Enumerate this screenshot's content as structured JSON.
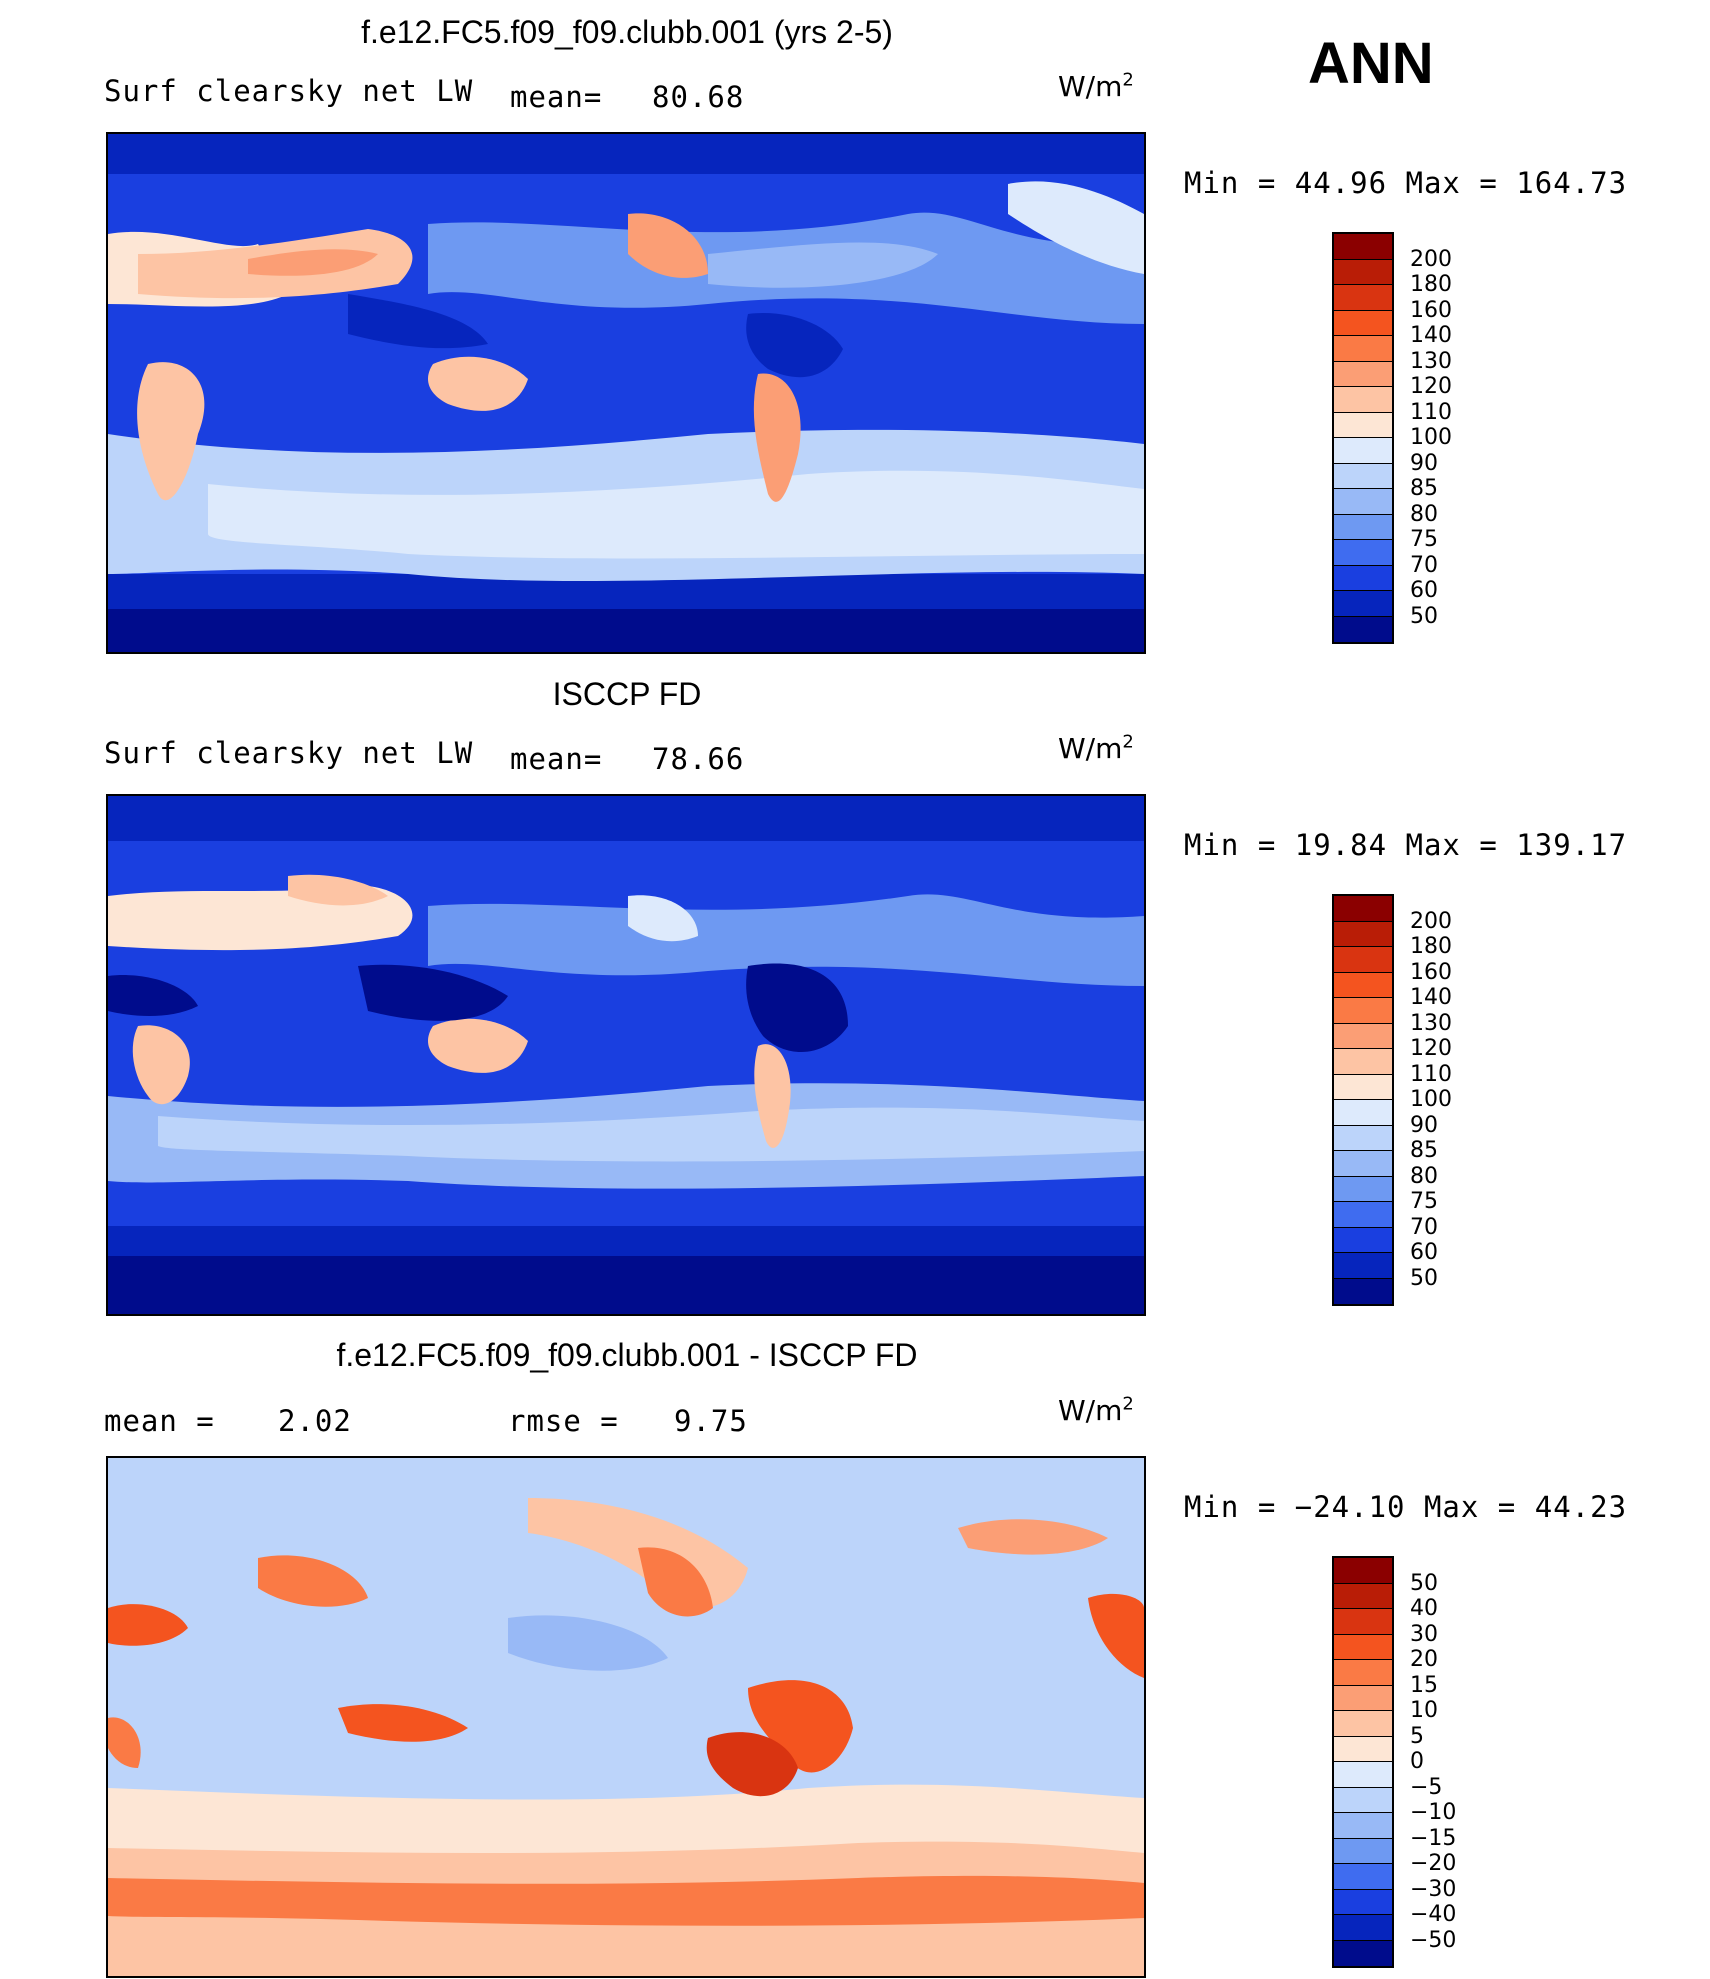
{
  "season": "ANN",
  "panels": [
    {
      "title": "f.e12.FC5.f09_f09.clubb.001 (yrs 2-5)",
      "left_label": "Surf clearsky net LW",
      "mid_label": "mean=",
      "mid_value": "80.68",
      "units_base": "W/m",
      "units_exp": "2",
      "minmax": "Min =   44.96 Max =  164.73",
      "colorbar_labels": [
        "200",
        "180",
        "160",
        "140",
        "130",
        "120",
        "110",
        "100",
        "90",
        "85",
        "80",
        "75",
        "70",
        "60",
        "50"
      ],
      "colorbar_colors": [
        "#8b0000",
        "#b91d06",
        "#d93411",
        "#f4541f",
        "#fa7a45",
        "#fb9e75",
        "#fdc4a4",
        "#fde6d5",
        "#ddeafc",
        "#bcd4fa",
        "#98b9f6",
        "#6e99f2",
        "#3f6cf0",
        "#1a3fe0",
        "#0625bd",
        "#000c8c"
      ]
    },
    {
      "title": "ISCCP FD",
      "left_label": "Surf clearsky net LW",
      "mid_label": "mean=",
      "mid_value": "78.66",
      "units_base": "W/m",
      "units_exp": "2",
      "minmax": "Min =   19.84 Max =  139.17",
      "colorbar_labels": [
        "200",
        "180",
        "160",
        "140",
        "130",
        "120",
        "110",
        "100",
        "90",
        "85",
        "80",
        "75",
        "70",
        "60",
        "50"
      ],
      "colorbar_colors": [
        "#8b0000",
        "#b91d06",
        "#d93411",
        "#f4541f",
        "#fa7a45",
        "#fb9e75",
        "#fdc4a4",
        "#fde6d5",
        "#ddeafc",
        "#bcd4fa",
        "#98b9f6",
        "#6e99f2",
        "#3f6cf0",
        "#1a3fe0",
        "#0625bd",
        "#000c8c"
      ]
    },
    {
      "title": "f.e12.FC5.f09_f09.clubb.001 - ISCCP FD",
      "left_label": "mean =",
      "left_value": "2.02",
      "mid_label": "rmse =",
      "mid_value": "9.75",
      "units_base": "W/m",
      "units_exp": "2",
      "minmax": "Min = −24.10 Max =   44.23",
      "colorbar_labels": [
        "50",
        "40",
        "30",
        "20",
        "15",
        "10",
        "5",
        "0",
        "−5",
        "−10",
        "−15",
        "−20",
        "−30",
        "−40",
        "−50"
      ],
      "colorbar_colors": [
        "#8b0000",
        "#b91d06",
        "#d93411",
        "#f4541f",
        "#fa7a45",
        "#fb9e75",
        "#fdc4a4",
        "#fde6d5",
        "#ddeafc",
        "#bcd4fa",
        "#98b9f6",
        "#6e99f2",
        "#3f6cf0",
        "#1a3fe0",
        "#0625bd",
        "#000c8c"
      ]
    }
  ]
}
